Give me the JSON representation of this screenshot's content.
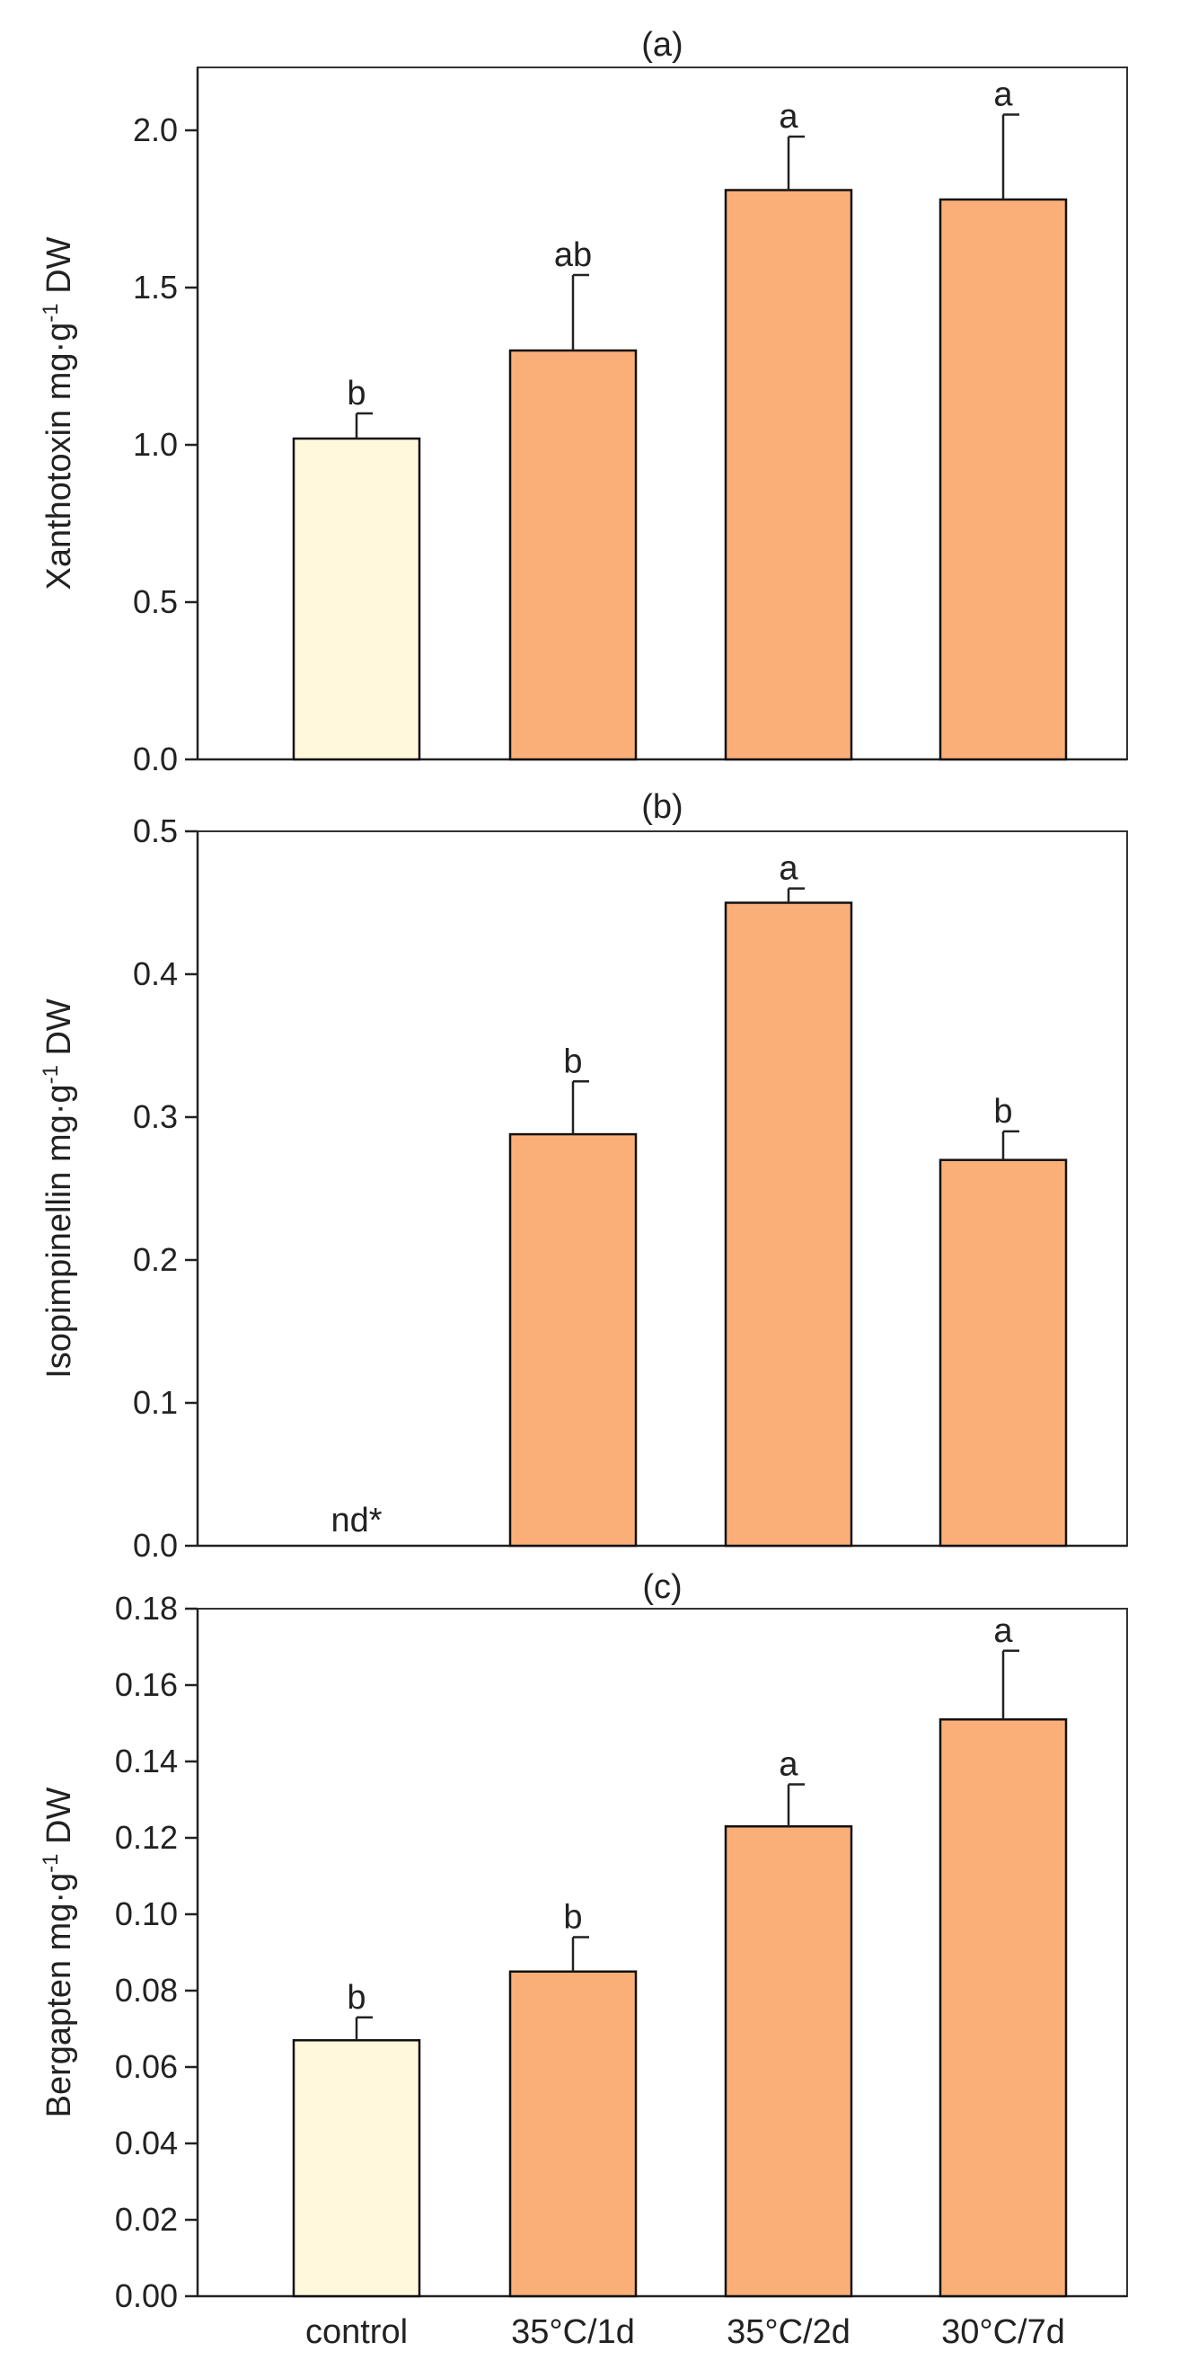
{
  "colors": {
    "control": "#FFF8DC",
    "treatment": "#FBAF78"
  },
  "categories": [
    "control",
    "35°C/1d",
    "35°C/2d",
    "30°C/7d"
  ],
  "chart_data": [
    {
      "type": "bar",
      "title": "(a)",
      "ylabel": "Xanthotoxin mg·g",
      "ylabel_sup": "-1",
      "ylabel_suffix": " DW",
      "ylim": [
        0,
        2.2
      ],
      "yticks": [
        "0.0",
        "0.5",
        "1.0",
        "1.5",
        "2.0"
      ],
      "tick_values": [
        0,
        0.5,
        1.0,
        1.5,
        2.0
      ],
      "categories": [
        "control",
        "35°C/1d",
        "35°C/2d",
        "30°C/7d"
      ],
      "values": [
        1.02,
        1.3,
        1.81,
        1.78
      ],
      "errors": [
        0.08,
        0.24,
        0.17,
        0.27
      ],
      "labels": [
        "b",
        "ab",
        "a",
        "a"
      ],
      "note": null
    },
    {
      "type": "bar",
      "title": "(b)",
      "ylabel": "Isopimpinellin mg·g",
      "ylabel_sup": "-1",
      "ylabel_suffix": " DW",
      "ylim": [
        0,
        0.5
      ],
      "yticks": [
        "0.0",
        "0.1",
        "0.2",
        "0.3",
        "0.4",
        "0.5"
      ],
      "tick_values": [
        0,
        0.1,
        0.2,
        0.3,
        0.4,
        0.5
      ],
      "categories": [
        "control",
        "35°C/1d",
        "35°C/2d",
        "30°C/7d"
      ],
      "values": [
        null,
        0.288,
        0.45,
        0.27
      ],
      "errors": [
        null,
        0.037,
        0.01,
        0.02
      ],
      "labels": [
        "",
        "b",
        "a",
        "b"
      ],
      "note": "nd*"
    },
    {
      "type": "bar",
      "title": "(c)",
      "ylabel": "Bergapten mg·g",
      "ylabel_sup": "-1",
      "ylabel_suffix": " DW",
      "ylim": [
        0,
        0.18
      ],
      "yticks": [
        "0.00",
        "0.02",
        "0.04",
        "0.06",
        "0.08",
        "0.10",
        "0.12",
        "0.14",
        "0.16",
        "0.18"
      ],
      "tick_values": [
        0,
        0.02,
        0.04,
        0.06,
        0.08,
        0.1,
        0.12,
        0.14,
        0.16,
        0.18
      ],
      "categories": [
        "control",
        "35°C/1d",
        "35°C/2d",
        "30°C/7d"
      ],
      "values": [
        0.067,
        0.085,
        0.123,
        0.151
      ],
      "errors": [
        0.006,
        0.009,
        0.011,
        0.018
      ],
      "labels": [
        "b",
        "b",
        "a",
        "a"
      ],
      "note": null
    }
  ]
}
